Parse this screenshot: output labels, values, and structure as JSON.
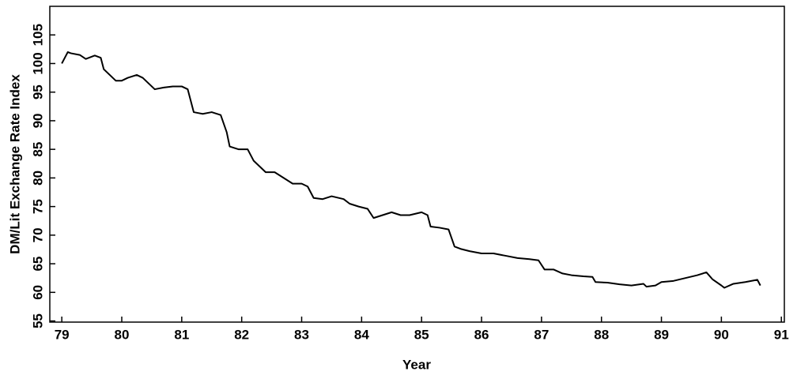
{
  "chart_data": {
    "type": "line",
    "x_label": "Year",
    "y_label": "DM/Lit Exchange Rate Index",
    "xlim": [
      78.8,
      91.05
    ],
    "ylim": [
      54.8,
      110
    ],
    "xticks": [
      79,
      80,
      81,
      82,
      83,
      84,
      85,
      86,
      87,
      88,
      89,
      90,
      91
    ],
    "yticks": [
      55,
      60,
      65,
      70,
      75,
      80,
      85,
      90,
      95,
      100,
      105
    ],
    "series": [
      {
        "color": "#000000",
        "x": [
          79.0,
          79.1,
          79.15,
          79.3,
          79.4,
          79.55,
          79.65,
          79.7,
          79.8,
          79.9,
          80.0,
          80.1,
          80.25,
          80.35,
          80.45,
          80.55,
          80.7,
          80.85,
          81.0,
          81.1,
          81.2,
          81.35,
          81.5,
          81.65,
          81.75,
          81.8,
          81.95,
          82.1,
          82.2,
          82.3,
          82.4,
          82.55,
          82.7,
          82.85,
          83.0,
          83.1,
          83.2,
          83.35,
          83.5,
          83.7,
          83.8,
          83.95,
          84.1,
          84.2,
          84.35,
          84.5,
          84.65,
          84.8,
          85.0,
          85.1,
          85.15,
          85.3,
          85.45,
          85.55,
          85.65,
          85.8,
          86.0,
          86.2,
          86.4,
          86.6,
          86.8,
          86.95,
          87.05,
          87.2,
          87.35,
          87.5,
          87.7,
          87.85,
          87.9,
          88.1,
          88.3,
          88.5,
          88.7,
          88.75,
          88.9,
          89.0,
          89.2,
          89.4,
          89.6,
          89.75,
          89.85,
          90.0,
          90.05,
          90.2,
          90.4,
          90.6,
          90.65
        ],
        "values": [
          100,
          102,
          101.8,
          101.5,
          100.8,
          101.4,
          101,
          99,
          98,
          97,
          97,
          97.5,
          98,
          97.5,
          96.5,
          95.5,
          95.8,
          96,
          96,
          95.5,
          91.5,
          91.2,
          91.5,
          91,
          88,
          85.5,
          85,
          85,
          83,
          82,
          81,
          81,
          80,
          79,
          79,
          78.5,
          76.5,
          76.3,
          76.8,
          76.3,
          75.5,
          75,
          74.6,
          73,
          73.5,
          74,
          73.5,
          73.5,
          74,
          73.5,
          71.5,
          71.3,
          71,
          68,
          67.6,
          67.2,
          66.8,
          66.8,
          66.4,
          66,
          65.8,
          65.6,
          64,
          64,
          63.3,
          63,
          62.8,
          62.7,
          61.8,
          61.7,
          61.4,
          61.2,
          61.5,
          61,
          61.2,
          61.8,
          62,
          62.5,
          63,
          63.5,
          62.3,
          61.2,
          60.8,
          61.5,
          61.8,
          62.2,
          61.2
        ]
      }
    ]
  }
}
